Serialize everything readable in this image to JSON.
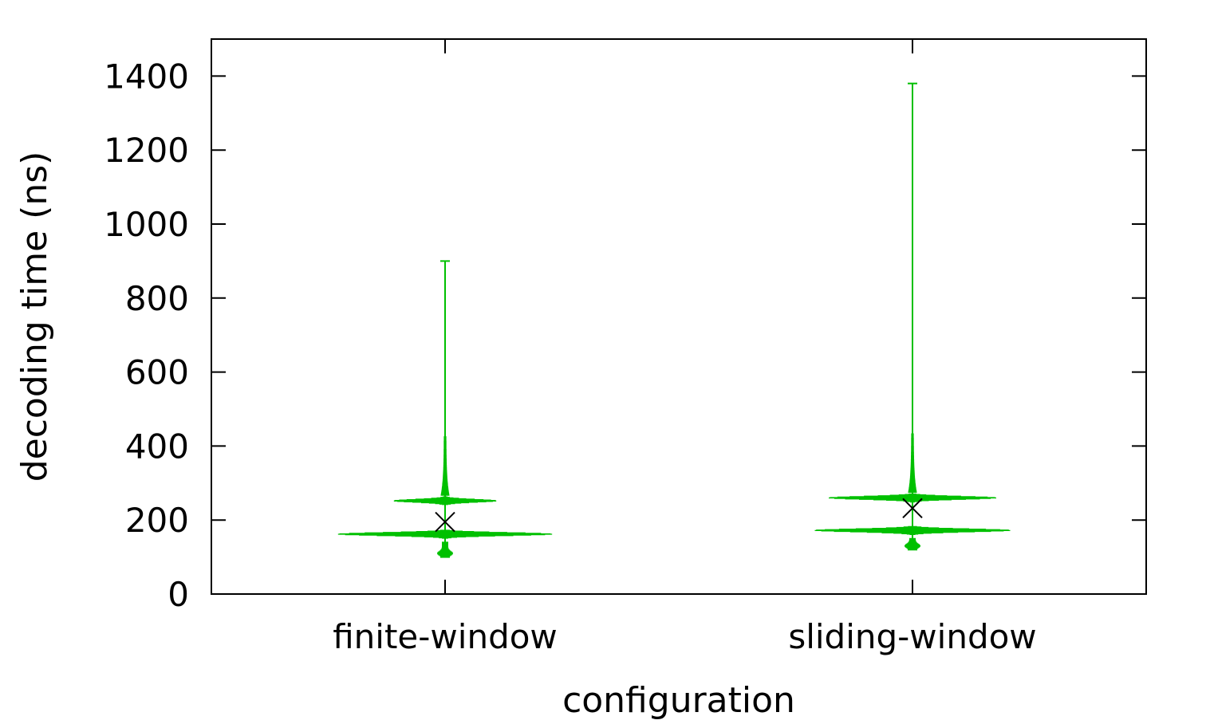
{
  "chart_data": {
    "type": "violin",
    "title": "",
    "xlabel": "configuration",
    "ylabel": "decoding time (ns)",
    "ylim": [
      0,
      1500
    ],
    "yticks": [
      0,
      200,
      400,
      600,
      800,
      1000,
      1200,
      1400
    ],
    "categories": [
      "finite-window",
      "sliding-window"
    ],
    "grid": false,
    "legend": "none",
    "series_color": "#00c000",
    "mean_marker_color": "#000000",
    "series": [
      {
        "category": "finite-window",
        "min": 100,
        "max": 900,
        "mean": 195,
        "modes": [
          {
            "center": 162,
            "half_width_units": 0.23
          },
          {
            "center": 252,
            "half_width_units": 0.11
          }
        ]
      },
      {
        "category": "sliding-window",
        "min": 120,
        "max": 1380,
        "mean": 232,
        "modes": [
          {
            "center": 172,
            "half_width_units": 0.21
          },
          {
            "center": 260,
            "half_width_units": 0.18
          }
        ]
      }
    ]
  }
}
